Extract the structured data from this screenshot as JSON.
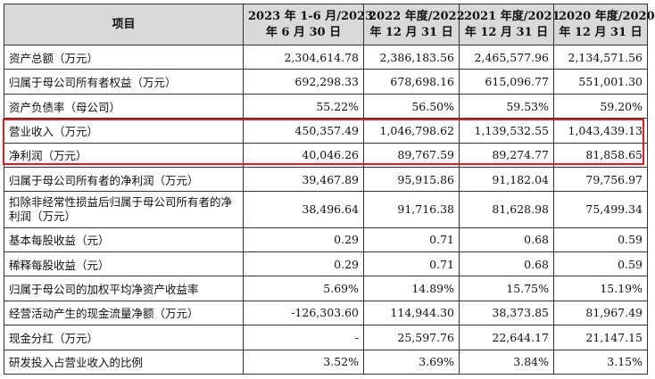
{
  "header": {
    "item": "项目",
    "col1": [
      "2023 年 1-6 月/2023",
      "年 6 月 30 日"
    ],
    "col2": [
      "2022 年度/2022",
      "年 12 月 31 日"
    ],
    "col3": [
      "2021 年度/2021",
      "年 12 月 31 日"
    ],
    "col4": [
      "2020 年度/2020",
      "年 12 月 31 日"
    ]
  },
  "rows": [
    {
      "label": "资产总额（万元）",
      "v1": "2,304,614.78",
      "v2": "2,386,183.56",
      "v3": "2,465,577.96",
      "v4": "2,134,571.56"
    },
    {
      "label": "归属于母公司所有者权益（万元）",
      "v1": "692,298.33",
      "v2": "678,698.16",
      "v3": "615,096.77",
      "v4": "551,001.30"
    },
    {
      "label": "资产负债率（母公司）",
      "v1": "55.22%",
      "v2": "56.50%",
      "v3": "59.53%",
      "v4": "59.20%"
    },
    {
      "label": "营业收入（万元）",
      "v1": "450,357.49",
      "v2": "1,046,798.62",
      "v3": "1,139,532.55",
      "v4": "1,043,439.13"
    },
    {
      "label": "净利润（万元）",
      "v1": "40,046.26",
      "v2": "89,767.59",
      "v3": "89,274.77",
      "v4": "81,858.65"
    },
    {
      "label": "归属于母公司所有者的净利润（万元）",
      "v1": "39,467.89",
      "v2": "95,915.86",
      "v3": "91,182.04",
      "v4": "79,756.97"
    },
    {
      "label": "扣除非经常性损益后归属于母公司所有者的净利润（万元）",
      "v1": "38,496.64",
      "v2": "91,716.38",
      "v3": "81,628.98",
      "v4": "75,499.34"
    },
    {
      "label": "基本每股收益（元）",
      "v1": "0.29",
      "v2": "0.71",
      "v3": "0.68",
      "v4": "0.59"
    },
    {
      "label": "稀释每股收益（元）",
      "v1": "0.29",
      "v2": "0.71",
      "v3": "0.68",
      "v4": "0.59"
    },
    {
      "label": "归属于母公司的加权平均净资产收益率",
      "v1": "5.69%",
      "v2": "14.89%",
      "v3": "15.75%",
      "v4": "15.19%"
    },
    {
      "label": "经营活动产生的现金流量净额（万元）",
      "v1": "-126,303.60",
      "v2": "114,944.30",
      "v3": "38,373.85",
      "v4": "81,967.49"
    },
    {
      "label": "现金分红（万元）",
      "v1": "-",
      "v2": "25,597.76",
      "v3": "22,644.17",
      "v4": "21,147.15"
    },
    {
      "label": "研发投入占营业收入的比例",
      "v1": "3.52%",
      "v2": "3.69%",
      "v3": "3.84%",
      "v4": "3.15%"
    }
  ],
  "highlight_color": "#e02020"
}
